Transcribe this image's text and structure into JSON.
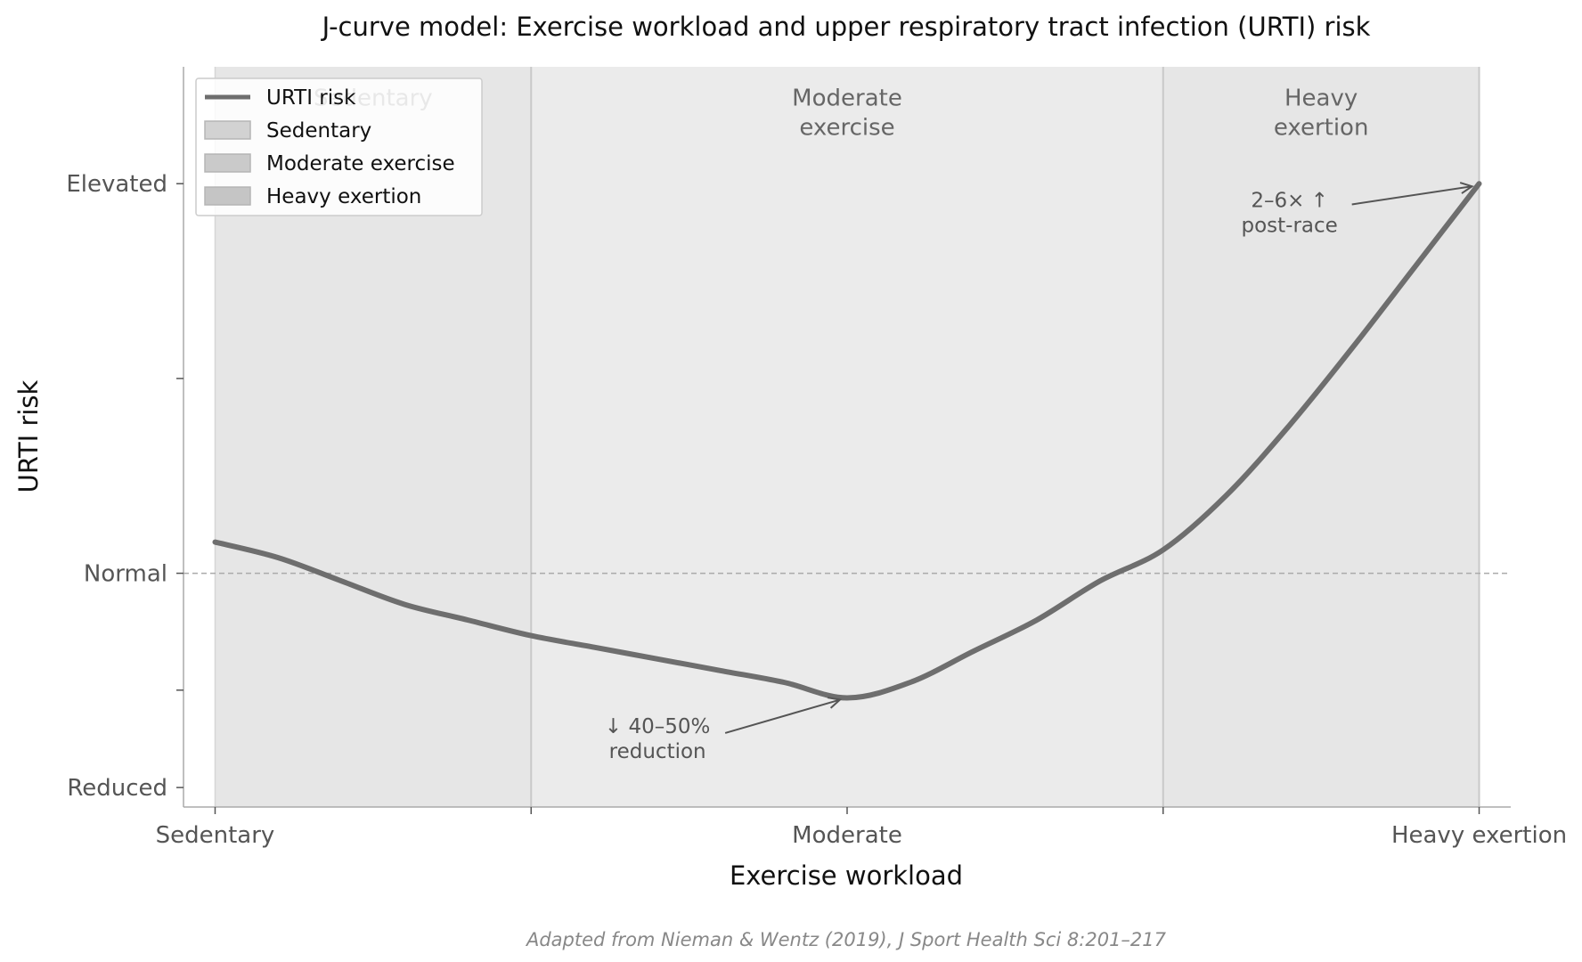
{
  "chart_data": {
    "type": "line",
    "title": "J-curve model: Exercise workload and upper respiratory tract infection (URTI) risk",
    "xlabel": "Exercise workload",
    "ylabel": "URTI risk",
    "x_ticks": [
      {
        "value": 0,
        "label": "Sedentary"
      },
      {
        "value": 0.25,
        "label": ""
      },
      {
        "value": 0.5,
        "label": "Moderate"
      },
      {
        "value": 0.75,
        "label": ""
      },
      {
        "value": 1,
        "label": "Heavy exertion"
      }
    ],
    "y_ticks": [
      {
        "value": -0.55,
        "label": "Reduced"
      },
      {
        "value": -0.3,
        "label": ""
      },
      {
        "value": 0,
        "label": "Normal"
      },
      {
        "value": 0.5,
        "label": ""
      },
      {
        "value": 1,
        "label": "Elevated"
      }
    ],
    "xlim": [
      -0.025,
      1.025
    ],
    "ylim": [
      -0.6,
      1.3
    ],
    "regions": [
      {
        "name": "Sedentary",
        "label": "Sedentary",
        "x": [
          0,
          0.25
        ],
        "color": "#e6e6e6"
      },
      {
        "name": "Moderate exercise",
        "label": "Moderate\nexercise",
        "x": [
          0.25,
          0.75
        ],
        "color": "#ebebeb"
      },
      {
        "name": "Heavy exertion",
        "label": "Heavy\nexertion",
        "x": [
          0.75,
          1
        ],
        "color": "#e6e6e6"
      }
    ],
    "series": [
      {
        "name": "URTI risk",
        "color": "#6e6e6e",
        "x": [
          0,
          0.05,
          0.1,
          0.15,
          0.2,
          0.25,
          0.3,
          0.35,
          0.4,
          0.45,
          0.5,
          0.55,
          0.6,
          0.65,
          0.7,
          0.75,
          0.8,
          0.85,
          0.9,
          0.95,
          1
        ],
        "y": [
          0.08,
          0.04,
          -0.02,
          -0.08,
          -0.12,
          -0.16,
          -0.19,
          -0.22,
          -0.25,
          -0.28,
          -0.32,
          -0.28,
          -0.2,
          -0.12,
          -0.02,
          0.06,
          0.2,
          0.38,
          0.58,
          0.79,
          1.0
        ]
      }
    ],
    "reference_line": {
      "y": 0,
      "style": "dashed",
      "color": "#aaaaaa"
    },
    "annotations": [
      {
        "text": [
          "↓ 40–50%",
          "reduction"
        ],
        "target": [
          0.5,
          -0.32
        ],
        "text_at": [
          0.35,
          -0.41
        ]
      },
      {
        "text": [
          "2–6× ↑",
          "post-race"
        ],
        "target": [
          1,
          1.0
        ],
        "text_at": [
          0.85,
          0.94
        ]
      }
    ],
    "legend": {
      "position": "top-left",
      "entries": [
        {
          "label": "URTI risk",
          "kind": "line",
          "color": "#6e6e6e"
        },
        {
          "label": "Sedentary",
          "kind": "patch",
          "color": "#d2d2d2"
        },
        {
          "label": "Moderate exercise",
          "kind": "patch",
          "color": "#cacaca"
        },
        {
          "label": "Heavy exertion",
          "kind": "patch",
          "color": "#c5c5c5"
        }
      ]
    },
    "source_note": "Adapted from Nieman & Wentz (2019), J Sport Health Sci 8:201–217",
    "grid": false
  }
}
